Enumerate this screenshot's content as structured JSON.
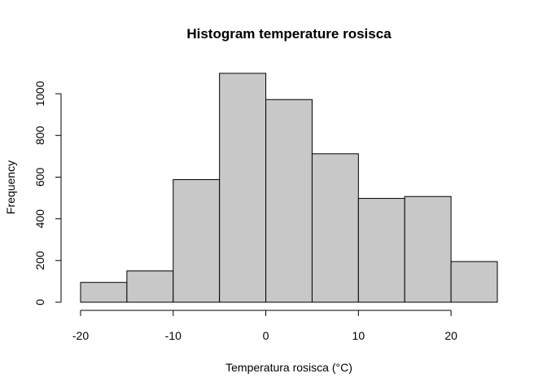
{
  "chart_data": {
    "type": "bar",
    "title": "Histogram temperature rosisca",
    "xlabel": "Temperatura rosisca (°C)",
    "ylabel": "Frequency",
    "bins": [
      {
        "from": -20,
        "to": -15,
        "count": 95
      },
      {
        "from": -15,
        "to": -10,
        "count": 150
      },
      {
        "from": -10,
        "to": -5,
        "count": 588
      },
      {
        "from": -5,
        "to": 0,
        "count": 1098
      },
      {
        "from": 0,
        "to": 5,
        "count": 972
      },
      {
        "from": 5,
        "to": 10,
        "count": 712
      },
      {
        "from": 10,
        "to": 15,
        "count": 498
      },
      {
        "from": 15,
        "to": 20,
        "count": 507
      },
      {
        "from": 20,
        "to": 25,
        "count": 195
      }
    ],
    "xticks": [
      -20,
      -10,
      0,
      10,
      20
    ],
    "yticks": [
      0,
      200,
      400,
      600,
      800,
      1000
    ],
    "xlim": [
      -20,
      25
    ],
    "ylim": [
      0,
      1098
    ],
    "grid": false,
    "bar_color": "#c8c8c8",
    "edge_color": "#000000"
  }
}
